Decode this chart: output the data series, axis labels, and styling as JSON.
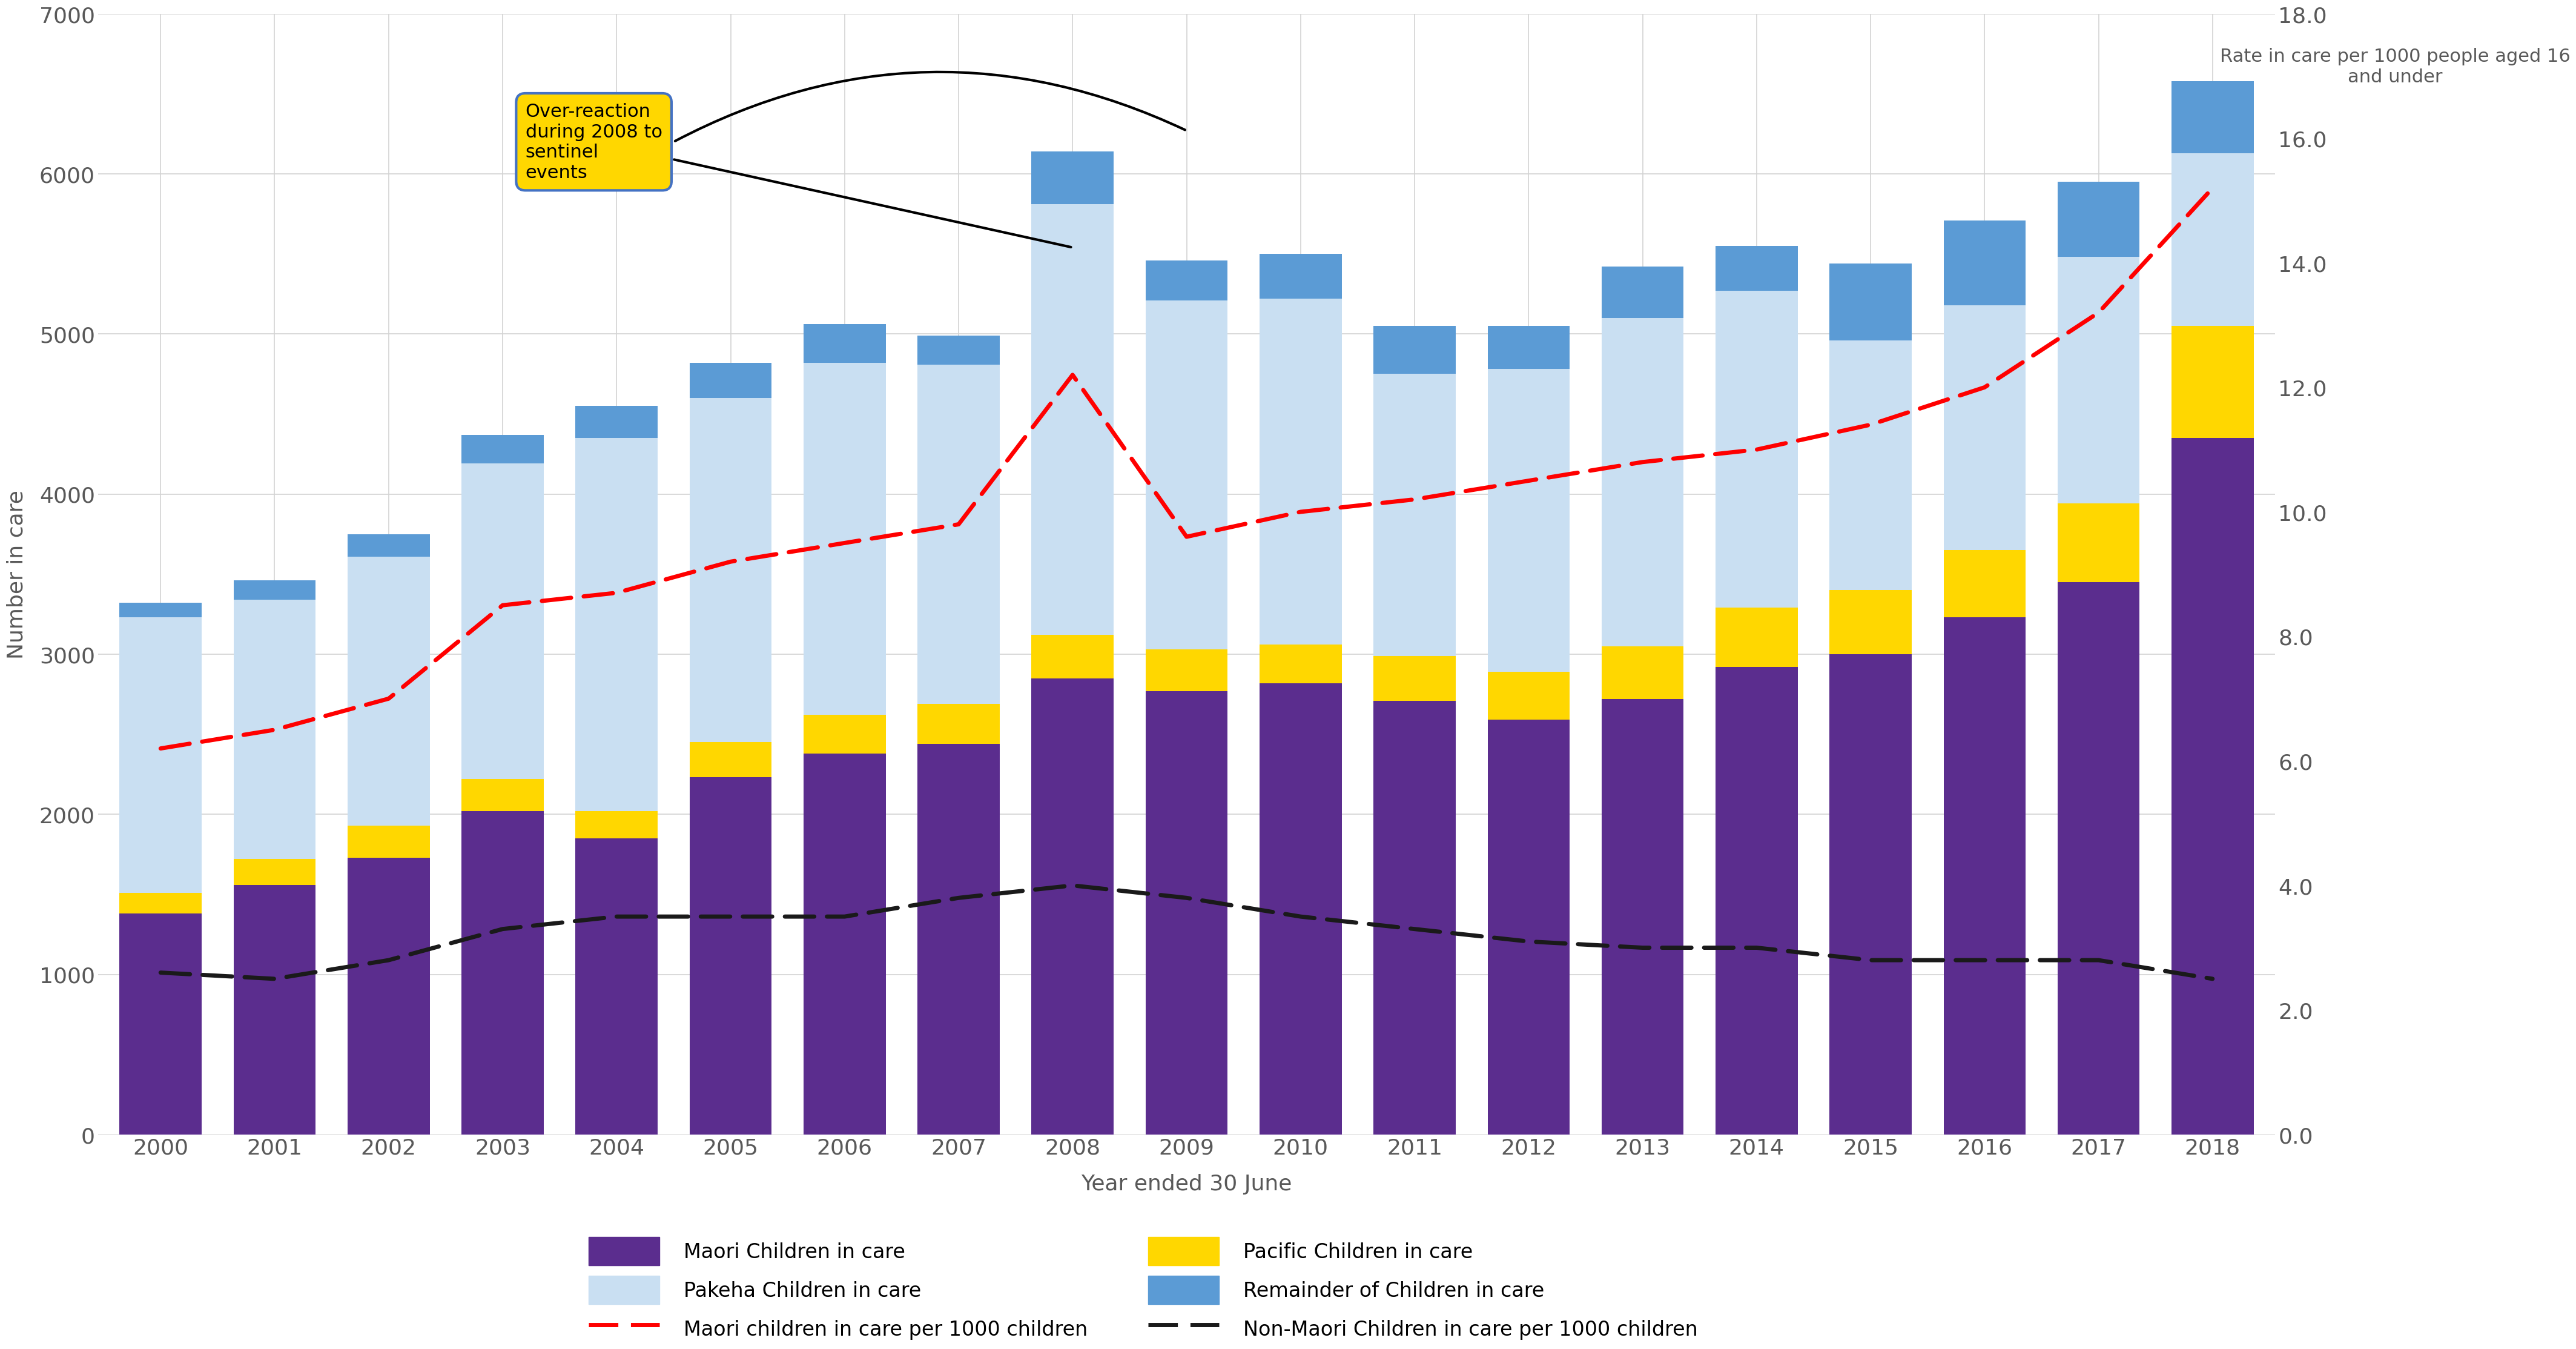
{
  "years": [
    2000,
    2001,
    2002,
    2003,
    2004,
    2005,
    2006,
    2007,
    2008,
    2009,
    2010,
    2011,
    2012,
    2013,
    2014,
    2015,
    2016,
    2017,
    2018
  ],
  "maori": [
    1380,
    1560,
    1730,
    2020,
    1850,
    2230,
    2380,
    2440,
    2850,
    2770,
    2820,
    2710,
    2590,
    2720,
    2920,
    3000,
    3230,
    3450,
    4350
  ],
  "pacific": [
    130,
    160,
    200,
    200,
    170,
    220,
    240,
    250,
    270,
    260,
    240,
    280,
    300,
    330,
    370,
    400,
    420,
    490,
    700
  ],
  "pakeha": [
    1720,
    1620,
    1680,
    1970,
    2330,
    2150,
    2200,
    2120,
    2690,
    2180,
    2160,
    1760,
    1890,
    2050,
    1980,
    1560,
    1530,
    1540,
    1080
  ],
  "remainder": [
    90,
    120,
    140,
    180,
    200,
    220,
    240,
    180,
    330,
    250,
    280,
    300,
    270,
    320,
    280,
    480,
    530,
    470,
    450
  ],
  "maori_rate": [
    6.2,
    6.5,
    7.0,
    8.5,
    8.7,
    9.2,
    9.5,
    9.8,
    12.2,
    9.6,
    10.0,
    10.2,
    10.5,
    10.8,
    11.0,
    11.4,
    12.0,
    13.2,
    15.2
  ],
  "nonmaori_rate": [
    2.6,
    2.5,
    2.8,
    3.3,
    3.5,
    3.5,
    3.5,
    3.8,
    4.0,
    3.8,
    3.5,
    3.3,
    3.1,
    3.0,
    3.0,
    2.8,
    2.8,
    2.8,
    2.5
  ],
  "colors": {
    "maori": "#5B2D8E",
    "pacific": "#FFD700",
    "pakeha": "#C9DFF2",
    "remainder": "#5B9BD5"
  },
  "ylabel_left": "Number in care",
  "ylabel_right": "Rate in care per 1000 people aged 16\nand under",
  "xlabel": "Year ended 30 June",
  "ylim_left": [
    0,
    7000
  ],
  "ylim_right": [
    0,
    18.0
  ],
  "yticks_left": [
    0,
    1000,
    2000,
    3000,
    4000,
    5000,
    6000,
    7000
  ],
  "yticks_right": [
    0.0,
    2.0,
    4.0,
    6.0,
    8.0,
    10.0,
    12.0,
    14.0,
    16.0,
    18.0
  ],
  "annotation_text": "Over-reaction\nduring 2008 to\nsentinel\nevents",
  "bg_color": "#FFFFFF",
  "grid_color": "#D3D3D3"
}
